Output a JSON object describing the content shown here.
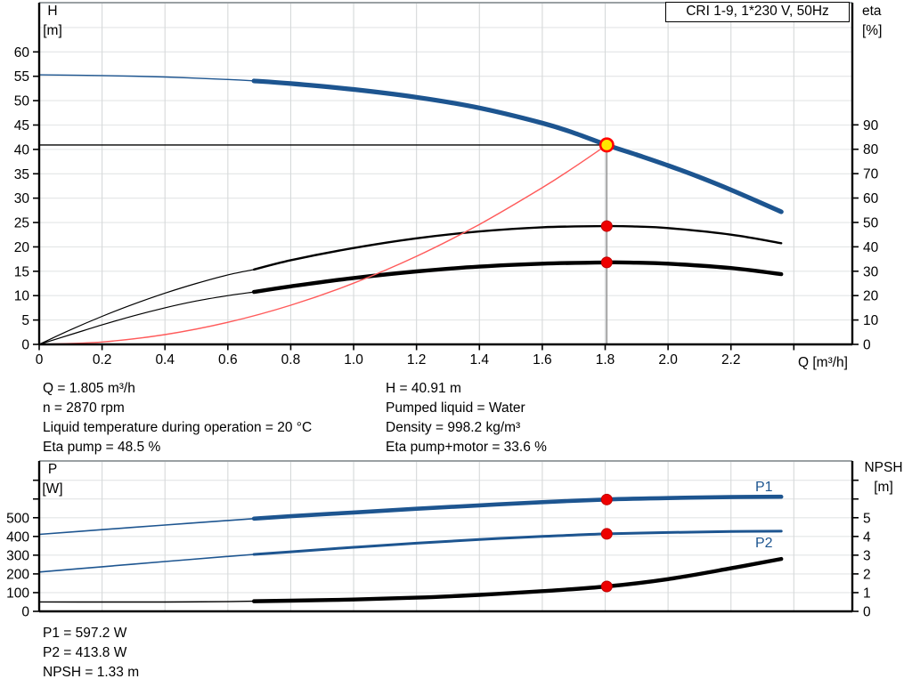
{
  "title_box": {
    "text": "CRI 1-9, 1*230 V, 50Hz"
  },
  "axis_titles": {
    "top_left": [
      "H",
      "[m]"
    ],
    "top_right": [
      "eta",
      "[%]"
    ],
    "bottom_left": [
      "P",
      "[W]"
    ],
    "bottom_right": [
      "NPSH",
      "[m]"
    ],
    "x": "Q [m³/h]"
  },
  "annotations": {
    "operating_left": [
      "Q = 1.805 m³/h",
      "n = 2870 rpm",
      "Liquid temperature during operation = 20 °C",
      "Eta pump = 48.5 %"
    ],
    "operating_right": [
      "H = 40.91 m",
      "Pumped liquid = Water",
      "Density = 998.2 kg/m³",
      "Eta pump+motor = 33.6 %"
    ],
    "power": [
      "P1 = 597.2 W",
      "P2 = 413.8 W",
      "NPSH = 1.33 m"
    ]
  },
  "series_labels": {
    "p1": "P1",
    "p2": "P2"
  },
  "colors": {
    "curve_blue": "#1d5590",
    "curve_black": "#000000",
    "system_red": "#ff5a5a",
    "marker_red": "#ee0000",
    "marker_edge": "#c00000",
    "duty_fill": "#ffe600",
    "duty_ring": "#ff0000",
    "grid_v": "#d6d9da",
    "grid_h": "#e3e5e6",
    "frame_top": "#9aa0a3",
    "frame": "#000000",
    "guide_v": "#8c8c8c",
    "label_blue": "#1d5590"
  },
  "chart_data": [
    {
      "type": "line",
      "title": "CRI 1-9, 1*230 V, 50Hz",
      "x_axis": {
        "label": "Q [m³/h]",
        "min": 0,
        "max": 2.586,
        "ticks": [
          [
            0,
            "0"
          ],
          [
            0.2,
            "0.2"
          ],
          [
            0.4,
            "0.4"
          ],
          [
            0.6,
            "0.6"
          ],
          [
            0.8,
            "0.8"
          ],
          [
            1.0,
            "1.0"
          ],
          [
            1.2,
            "1.2"
          ],
          [
            1.4,
            "1.4"
          ],
          [
            1.6,
            "1.6"
          ],
          [
            1.8,
            "1.8"
          ],
          [
            2.0,
            "2.0"
          ],
          [
            2.2,
            "2.2"
          ]
        ],
        "minor_ticks": [
          2.4
        ],
        "grid": [
          0.2,
          0.4,
          0.6,
          0.8,
          1.0,
          1.2,
          1.4,
          1.6,
          1.8,
          2.0,
          2.2,
          2.4
        ]
      },
      "y_left": {
        "label": "H [m]",
        "min": 0,
        "max": 70.1,
        "ticks": [
          [
            0,
            "0"
          ],
          [
            5,
            "5"
          ],
          [
            10,
            "10"
          ],
          [
            15,
            "15"
          ],
          [
            20,
            "20"
          ],
          [
            25,
            "25"
          ],
          [
            30,
            "30"
          ],
          [
            35,
            "35"
          ],
          [
            40,
            "40"
          ],
          [
            45,
            "45"
          ],
          [
            50,
            "50"
          ],
          [
            55,
            "55"
          ],
          [
            60,
            "60"
          ]
        ],
        "minor_ticks": [],
        "grid": [
          5,
          10,
          15,
          20,
          25,
          30,
          35,
          40,
          45,
          50,
          55,
          60,
          65
        ]
      },
      "y_right": {
        "label": "eta [%]",
        "min": 0,
        "max": 140.1,
        "ticks": [
          [
            0,
            "0"
          ],
          [
            10,
            "10"
          ],
          [
            20,
            "20"
          ],
          [
            30,
            "30"
          ],
          [
            40,
            "40"
          ],
          [
            50,
            "50"
          ],
          [
            60,
            "60"
          ],
          [
            70,
            "70"
          ],
          [
            80,
            "80"
          ],
          [
            90,
            "90"
          ]
        ],
        "minor_ticks": []
      },
      "guides": {
        "h_line": {
          "value": 40.91,
          "to_q": 1.805
        },
        "v_line": {
          "q": 1.805,
          "from_value": 40.91
        }
      },
      "duty_point": {
        "q": 1.805,
        "h": 40.91
      },
      "series": [
        {
          "name": "head-curve",
          "axis": "left",
          "color": "curve_blue",
          "w_thin": 1.4,
          "w_thick": 5.2,
          "thick_from": 0.683,
          "points": [
            [
              0,
              55.3
            ],
            [
              0.2,
              55.15
            ],
            [
              0.4,
              54.85
            ],
            [
              0.6,
              54.35
            ],
            [
              0.683,
              54.05
            ],
            [
              0.8,
              53.5
            ],
            [
              1.0,
              52.3
            ],
            [
              1.2,
              50.7
            ],
            [
              1.4,
              48.5
            ],
            [
              1.6,
              45.4
            ],
            [
              1.7,
              43.4
            ],
            [
              1.805,
              40.91
            ],
            [
              1.9,
              38.9
            ],
            [
              2.0,
              36.7
            ],
            [
              2.1,
              34.3
            ],
            [
              2.2,
              31.7
            ],
            [
              2.36,
              27.2
            ]
          ]
        },
        {
          "name": "eta-pump-curve",
          "axis": "right",
          "color": "curve_black",
          "w_thin": 1.2,
          "w_thick": 2.4,
          "thick_from": 0.683,
          "points": [
            [
              0,
              0
            ],
            [
              0.1,
              6
            ],
            [
              0.2,
              11.5
            ],
            [
              0.3,
              16.5
            ],
            [
              0.4,
              21
            ],
            [
              0.5,
              25
            ],
            [
              0.6,
              28.5
            ],
            [
              0.683,
              30.7
            ],
            [
              0.8,
              34.5
            ],
            [
              1.0,
              39.5
            ],
            [
              1.2,
              43.5
            ],
            [
              1.4,
              46.3
            ],
            [
              1.6,
              48
            ],
            [
              1.805,
              48.5
            ],
            [
              1.9,
              48.3
            ],
            [
              2.0,
              47.7
            ],
            [
              2.2,
              45
            ],
            [
              2.36,
              41.5
            ]
          ]
        },
        {
          "name": "eta-pump-motor-curve",
          "axis": "right",
          "color": "curve_black",
          "w_thin": 1.2,
          "w_thick": 4.4,
          "thick_from": 0.683,
          "points": [
            [
              0,
              0
            ],
            [
              0.1,
              4
            ],
            [
              0.2,
              8
            ],
            [
              0.3,
              11.7
            ],
            [
              0.4,
              15
            ],
            [
              0.5,
              17.8
            ],
            [
              0.6,
              20
            ],
            [
              0.683,
              21.5
            ],
            [
              0.8,
              23.8
            ],
            [
              1.0,
              27.2
            ],
            [
              1.2,
              29.9
            ],
            [
              1.4,
              31.9
            ],
            [
              1.6,
              33.1
            ],
            [
              1.805,
              33.6
            ],
            [
              1.9,
              33.5
            ],
            [
              2.0,
              33.1
            ],
            [
              2.2,
              31.3
            ],
            [
              2.36,
              28.8
            ]
          ]
        },
        {
          "name": "system-curve",
          "axis": "left",
          "color": "system_red",
          "w_thin": 1.4,
          "w_thick": 1.4,
          "thick_from": 9,
          "points": [
            [
              0,
              0
            ],
            [
              0.2,
              0.5
            ],
            [
              0.4,
              2.01
            ],
            [
              0.6,
              4.52
            ],
            [
              0.8,
              8.04
            ],
            [
              1.0,
              12.56
            ],
            [
              1.2,
              18.08
            ],
            [
              1.4,
              24.61
            ],
            [
              1.6,
              32.15
            ],
            [
              1.7,
              36.3
            ],
            [
              1.805,
              40.91
            ]
          ]
        }
      ],
      "markers": [
        {
          "q": 1.805,
          "value": 48.5,
          "axis": "right",
          "style": "dot"
        },
        {
          "q": 1.805,
          "value": 33.6,
          "axis": "right",
          "style": "dot"
        },
        {
          "q": 1.805,
          "value": 40.91,
          "axis": "left",
          "style": "duty"
        }
      ]
    },
    {
      "type": "line",
      "title": "",
      "x_axis": {
        "label": "",
        "min": 0,
        "max": 2.586,
        "ticks": [],
        "minor_ticks": [],
        "grid": [
          0.2,
          0.4,
          0.6,
          0.8,
          1.0,
          1.2,
          1.4,
          1.6,
          1.8,
          2.0,
          2.2,
          2.4
        ]
      },
      "y_left": {
        "label": "P [W]",
        "min": 0,
        "max": 803,
        "ticks": [
          [
            0,
            "0"
          ],
          [
            100,
            "100"
          ],
          [
            200,
            "200"
          ],
          [
            300,
            "300"
          ],
          [
            400,
            "400"
          ],
          [
            500,
            "500"
          ]
        ],
        "minor_ticks": [
          600,
          700
        ],
        "grid": [
          100,
          200,
          300,
          400,
          500,
          600,
          700
        ]
      },
      "y_right": {
        "label": "NPSH [m]",
        "min": 0,
        "max": 8.03,
        "ticks": [
          [
            0,
            "0"
          ],
          [
            1,
            "1"
          ],
          [
            2,
            "2"
          ],
          [
            3,
            "3"
          ],
          [
            4,
            "4"
          ],
          [
            5,
            "5"
          ]
        ],
        "minor_ticks": [
          6,
          7
        ]
      },
      "series": [
        {
          "name": "p1-curve",
          "axis": "left",
          "color": "curve_blue",
          "w_thin": 1.6,
          "w_thick": 4.6,
          "thick_from": 0.683,
          "points": [
            [
              0,
              411
            ],
            [
              0.2,
              436
            ],
            [
              0.4,
              461
            ],
            [
              0.6,
              485
            ],
            [
              0.683,
              495
            ],
            [
              0.8,
              508
            ],
            [
              1.0,
              528
            ],
            [
              1.2,
              548
            ],
            [
              1.4,
              566
            ],
            [
              1.6,
              583
            ],
            [
              1.805,
              597.2
            ],
            [
              2.0,
              605
            ],
            [
              2.2,
              610
            ],
            [
              2.36,
              612
            ]
          ]
        },
        {
          "name": "p2-curve",
          "axis": "left",
          "color": "curve_blue",
          "w_thin": 1.6,
          "w_thick": 3.0,
          "thick_from": 0.683,
          "points": [
            [
              0,
              210
            ],
            [
              0.2,
              238
            ],
            [
              0.4,
              266
            ],
            [
              0.6,
              293
            ],
            [
              0.683,
              304
            ],
            [
              0.8,
              318
            ],
            [
              1.0,
              342
            ],
            [
              1.2,
              364
            ],
            [
              1.4,
              384
            ],
            [
              1.6,
              400
            ],
            [
              1.805,
              413.8
            ],
            [
              2.0,
              421
            ],
            [
              2.2,
              426
            ],
            [
              2.36,
              428
            ]
          ]
        },
        {
          "name": "npsh-curve",
          "axis": "right",
          "color": "curve_black",
          "w_thin": 1.4,
          "w_thick": 4.4,
          "thick_from": 0.683,
          "points": [
            [
              0,
              0.5
            ],
            [
              0.2,
              0.5
            ],
            [
              0.4,
              0.5
            ],
            [
              0.6,
              0.52
            ],
            [
              0.683,
              0.54
            ],
            [
              0.8,
              0.57
            ],
            [
              1.0,
              0.63
            ],
            [
              1.2,
              0.73
            ],
            [
              1.4,
              0.88
            ],
            [
              1.6,
              1.08
            ],
            [
              1.805,
              1.33
            ],
            [
              2.0,
              1.72
            ],
            [
              2.2,
              2.3
            ],
            [
              2.36,
              2.8
            ]
          ]
        }
      ],
      "markers": [
        {
          "q": 1.805,
          "value": 597.2,
          "axis": "left",
          "style": "dot"
        },
        {
          "q": 1.805,
          "value": 413.8,
          "axis": "left",
          "style": "dot"
        },
        {
          "q": 1.805,
          "value": 1.33,
          "axis": "right",
          "style": "dot"
        }
      ]
    }
  ]
}
